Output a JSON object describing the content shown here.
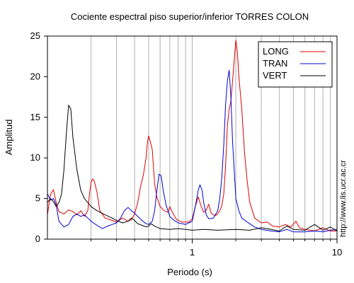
{
  "chart_data": {
    "type": "line",
    "title": "Cociente espectral piso superior/inferior  TORRES COLON",
    "xlabel": "Periodo (s)",
    "ylabel": "Amplitud",
    "xscale": "log",
    "xlim": [
      0.1,
      10
    ],
    "ylim": [
      0,
      25
    ],
    "x_tick_labels": [
      "1",
      "10"
    ],
    "y_ticks": [
      0,
      5,
      10,
      15,
      20,
      25
    ],
    "grid": "vertical log minor gridlines",
    "legend_position": "top-right",
    "series": [
      {
        "name": "LONG",
        "color": "#e00000",
        "points": [
          [
            0.1,
            3.0
          ],
          [
            0.105,
            5.5
          ],
          [
            0.11,
            6.1
          ],
          [
            0.115,
            4.5
          ],
          [
            0.12,
            3.4
          ],
          [
            0.13,
            3.1
          ],
          [
            0.14,
            3.6
          ],
          [
            0.15,
            3.4
          ],
          [
            0.16,
            3.0
          ],
          [
            0.17,
            3.5
          ],
          [
            0.18,
            2.8
          ],
          [
            0.19,
            3.5
          ],
          [
            0.195,
            5.5
          ],
          [
            0.2,
            7.0
          ],
          [
            0.205,
            7.4
          ],
          [
            0.21,
            7.2
          ],
          [
            0.22,
            5.8
          ],
          [
            0.23,
            3.5
          ],
          [
            0.25,
            2.6
          ],
          [
            0.27,
            2.4
          ],
          [
            0.3,
            2.1
          ],
          [
            0.33,
            2.6
          ],
          [
            0.36,
            2.2
          ],
          [
            0.38,
            2.4
          ],
          [
            0.4,
            3.1
          ],
          [
            0.42,
            4.5
          ],
          [
            0.44,
            6.5
          ],
          [
            0.46,
            7.9
          ],
          [
            0.48,
            10.0
          ],
          [
            0.49,
            11.8
          ],
          [
            0.5,
            12.7
          ],
          [
            0.51,
            12.2
          ],
          [
            0.53,
            11.0
          ],
          [
            0.55,
            6.8
          ],
          [
            0.57,
            5.2
          ],
          [
            0.6,
            4.0
          ],
          [
            0.64,
            3.5
          ],
          [
            0.68,
            3.3
          ],
          [
            0.7,
            4.0
          ],
          [
            0.73,
            3.3
          ],
          [
            0.78,
            2.4
          ],
          [
            0.85,
            2.1
          ],
          [
            0.95,
            2.1
          ],
          [
            1.0,
            2.5
          ],
          [
            1.05,
            4.0
          ],
          [
            1.1,
            5.2
          ],
          [
            1.15,
            4.1
          ],
          [
            1.2,
            3.3
          ],
          [
            1.25,
            3.6
          ],
          [
            1.3,
            4.3
          ],
          [
            1.35,
            3.2
          ],
          [
            1.4,
            3.0
          ],
          [
            1.45,
            2.9
          ],
          [
            1.5,
            3.1
          ],
          [
            1.55,
            3.5
          ],
          [
            1.6,
            4.1
          ],
          [
            1.65,
            5.5
          ],
          [
            1.7,
            9.0
          ],
          [
            1.75,
            14.0
          ],
          [
            1.8,
            16.0
          ],
          [
            1.85,
            17.0
          ],
          [
            1.9,
            19.5
          ],
          [
            1.95,
            22.0
          ],
          [
            2.0,
            24.5
          ],
          [
            2.05,
            23.0
          ],
          [
            2.1,
            20.0
          ],
          [
            2.2,
            16.0
          ],
          [
            2.3,
            10.5
          ],
          [
            2.4,
            7.0
          ],
          [
            2.5,
            4.5
          ],
          [
            2.7,
            2.6
          ],
          [
            3.0,
            2.0
          ],
          [
            3.3,
            2.1
          ],
          [
            3.6,
            1.6
          ],
          [
            4.0,
            1.5
          ],
          [
            4.4,
            1.8
          ],
          [
            4.8,
            1.5
          ],
          [
            5.2,
            2.2
          ],
          [
            5.5,
            1.4
          ],
          [
            6.0,
            1.2
          ],
          [
            7.0,
            1.0
          ],
          [
            8.0,
            1.4
          ],
          [
            9.0,
            1.0
          ],
          [
            10.0,
            1.0
          ]
        ]
      },
      {
        "name": "TRAN",
        "color": "#0000d0",
        "points": [
          [
            0.1,
            5.6
          ],
          [
            0.105,
            4.8
          ],
          [
            0.11,
            5.0
          ],
          [
            0.115,
            4.2
          ],
          [
            0.12,
            2.2
          ],
          [
            0.13,
            1.5
          ],
          [
            0.14,
            1.8
          ],
          [
            0.15,
            2.8
          ],
          [
            0.16,
            3.1
          ],
          [
            0.17,
            2.8
          ],
          [
            0.18,
            3.0
          ],
          [
            0.19,
            2.6
          ],
          [
            0.2,
            2.2
          ],
          [
            0.22,
            1.7
          ],
          [
            0.24,
            1.3
          ],
          [
            0.26,
            1.6
          ],
          [
            0.28,
            1.8
          ],
          [
            0.3,
            2.0
          ],
          [
            0.32,
            2.6
          ],
          [
            0.34,
            3.5
          ],
          [
            0.36,
            3.9
          ],
          [
            0.38,
            3.5
          ],
          [
            0.4,
            3.2
          ],
          [
            0.42,
            2.8
          ],
          [
            0.45,
            2.3
          ],
          [
            0.48,
            1.9
          ],
          [
            0.5,
            1.8
          ],
          [
            0.53,
            2.2
          ],
          [
            0.55,
            3.5
          ],
          [
            0.57,
            6.0
          ],
          [
            0.59,
            8.0
          ],
          [
            0.61,
            7.8
          ],
          [
            0.63,
            6.0
          ],
          [
            0.66,
            4.2
          ],
          [
            0.7,
            2.8
          ],
          [
            0.75,
            2.3
          ],
          [
            0.8,
            2.0
          ],
          [
            0.9,
            1.8
          ],
          [
            1.0,
            2.2
          ],
          [
            1.05,
            4.0
          ],
          [
            1.1,
            6.0
          ],
          [
            1.13,
            6.7
          ],
          [
            1.17,
            6.0
          ],
          [
            1.2,
            4.5
          ],
          [
            1.25,
            3.0
          ],
          [
            1.3,
            2.5
          ],
          [
            1.4,
            2.6
          ],
          [
            1.5,
            3.5
          ],
          [
            1.55,
            5.0
          ],
          [
            1.6,
            7.5
          ],
          [
            1.65,
            11.5
          ],
          [
            1.7,
            16.5
          ],
          [
            1.75,
            19.5
          ],
          [
            1.8,
            20.8
          ],
          [
            1.85,
            17.5
          ],
          [
            1.9,
            12.0
          ],
          [
            1.95,
            8.5
          ],
          [
            2.0,
            5.0
          ],
          [
            2.1,
            3.5
          ],
          [
            2.2,
            2.6
          ],
          [
            2.4,
            2.1
          ],
          [
            2.7,
            1.5
          ],
          [
            3.0,
            1.2
          ],
          [
            3.5,
            1.0
          ],
          [
            4.0,
            0.9
          ],
          [
            4.5,
            1.2
          ],
          [
            5.0,
            0.9
          ],
          [
            6.0,
            0.9
          ],
          [
            7.0,
            1.0
          ],
          [
            8.0,
            0.9
          ],
          [
            9.0,
            1.1
          ],
          [
            10.0,
            1.2
          ]
        ]
      },
      {
        "name": "VERT",
        "color": "#000000",
        "points": [
          [
            0.1,
            4.5
          ],
          [
            0.105,
            5.0
          ],
          [
            0.11,
            4.6
          ],
          [
            0.115,
            4.0
          ],
          [
            0.12,
            4.5
          ],
          [
            0.125,
            5.5
          ],
          [
            0.13,
            8.5
          ],
          [
            0.135,
            13.0
          ],
          [
            0.14,
            16.5
          ],
          [
            0.145,
            16.0
          ],
          [
            0.15,
            12.5
          ],
          [
            0.16,
            8.5
          ],
          [
            0.17,
            6.0
          ],
          [
            0.18,
            5.0
          ],
          [
            0.19,
            4.5
          ],
          [
            0.2,
            4.0
          ],
          [
            0.22,
            3.5
          ],
          [
            0.25,
            3.0
          ],
          [
            0.28,
            2.6
          ],
          [
            0.3,
            2.3
          ],
          [
            0.33,
            2.0
          ],
          [
            0.36,
            2.2
          ],
          [
            0.38,
            2.6
          ],
          [
            0.4,
            2.3
          ],
          [
            0.42,
            1.9
          ],
          [
            0.45,
            1.7
          ],
          [
            0.48,
            1.5
          ],
          [
            0.5,
            1.6
          ],
          [
            0.52,
            1.9
          ],
          [
            0.55,
            1.6
          ],
          [
            0.6,
            1.3
          ],
          [
            0.7,
            1.2
          ],
          [
            0.8,
            1.3
          ],
          [
            0.9,
            1.2
          ],
          [
            1.0,
            1.1
          ],
          [
            1.2,
            1.2
          ],
          [
            1.5,
            1.1
          ],
          [
            2.0,
            1.2
          ],
          [
            2.5,
            1.1
          ],
          [
            3.0,
            1.4
          ],
          [
            3.5,
            1.2
          ],
          [
            4.0,
            1.0
          ],
          [
            4.5,
            1.6
          ],
          [
            5.0,
            1.2
          ],
          [
            6.0,
            1.1
          ],
          [
            7.0,
            1.8
          ],
          [
            8.0,
            1.1
          ],
          [
            9.0,
            1.5
          ],
          [
            10.0,
            1.0
          ]
        ]
      }
    ]
  },
  "watermark_text": "http://www.lis.ucr.ac.cr"
}
